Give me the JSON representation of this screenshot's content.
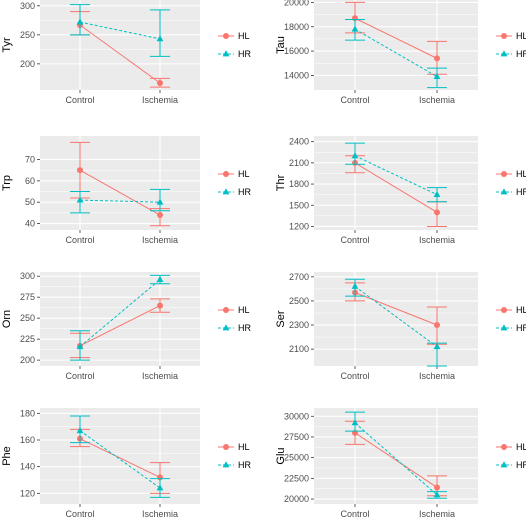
{
  "colors": {
    "HL": "#f8766d",
    "HR": "#00bfc4",
    "panel_bg": "#ebebeb",
    "grid": "#ffffff"
  },
  "chart_data": [
    {
      "type": "line",
      "ylabel": "Tyr",
      "categories": [
        "Control",
        "Ischemia"
      ],
      "ylim": [
        155,
        310
      ],
      "yticks": [
        200,
        250,
        300
      ],
      "legend": [
        "HL",
        "HR"
      ],
      "series": [
        {
          "name": "HL",
          "values": [
            267,
            167
          ],
          "lower": [
            250,
            160
          ],
          "upper": [
            290,
            175
          ]
        },
        {
          "name": "HR",
          "values": [
            272,
            243
          ],
          "lower": [
            250,
            213
          ],
          "upper": [
            302,
            293
          ]
        }
      ]
    },
    {
      "type": "line",
      "ylabel": "Tau",
      "categories": [
        "Control",
        "Ischemia"
      ],
      "ylim": [
        12800,
        20200
      ],
      "yticks": [
        14000,
        16000,
        18000,
        20000
      ],
      "legend": [
        "HL",
        "HR"
      ],
      "series": [
        {
          "name": "HL",
          "values": [
            18700,
            15400
          ],
          "lower": [
            17500,
            14100
          ],
          "upper": [
            20000,
            16800
          ]
        },
        {
          "name": "HR",
          "values": [
            17800,
            13900
          ],
          "lower": [
            16900,
            13000
          ],
          "upper": [
            18600,
            14600
          ]
        }
      ]
    },
    {
      "type": "line",
      "ylabel": "Trp",
      "categories": [
        "Control",
        "Ischemia"
      ],
      "ylim": [
        37,
        81
      ],
      "yticks": [
        40,
        50,
        60,
        70
      ],
      "legend": [
        "HL",
        "HR"
      ],
      "series": [
        {
          "name": "HL",
          "values": [
            65,
            44
          ],
          "lower": [
            52,
            39
          ],
          "upper": [
            78,
            47
          ]
        },
        {
          "name": "HR",
          "values": [
            51,
            50
          ],
          "lower": [
            45,
            46
          ],
          "upper": [
            55,
            56
          ]
        }
      ]
    },
    {
      "type": "line",
      "ylabel": "Thr",
      "categories": [
        "Control",
        "Ischemia"
      ],
      "ylim": [
        1150,
        2480
      ],
      "yticks": [
        1200,
        1500,
        1800,
        2100,
        2400
      ],
      "legend": [
        "HL",
        "HR"
      ],
      "series": [
        {
          "name": "HL",
          "values": [
            2100,
            1400
          ],
          "lower": [
            1960,
            1200
          ],
          "upper": [
            2200,
            1550
          ]
        },
        {
          "name": "HR",
          "values": [
            2200,
            1650
          ],
          "lower": [
            2080,
            1550
          ],
          "upper": [
            2380,
            1750
          ]
        }
      ]
    },
    {
      "type": "line",
      "ylabel": "Orn",
      "categories": [
        "Control",
        "Ischemia"
      ],
      "ylim": [
        193,
        305
      ],
      "yticks": [
        200,
        225,
        250,
        275,
        300
      ],
      "legend": [
        "HL",
        "HR"
      ],
      "series": [
        {
          "name": "HL",
          "values": [
            217,
            265
          ],
          "lower": [
            203,
            257
          ],
          "upper": [
            232,
            273
          ]
        },
        {
          "name": "HR",
          "values": [
            216,
            296
          ],
          "lower": [
            200,
            291
          ],
          "upper": [
            235,
            301
          ]
        }
      ]
    },
    {
      "type": "line",
      "ylabel": "Ser",
      "categories": [
        "Control",
        "Ischemia"
      ],
      "ylim": [
        1960,
        2740
      ],
      "yticks": [
        2100,
        2300,
        2500,
        2700
      ],
      "legend": [
        "HL",
        "HR"
      ],
      "series": [
        {
          "name": "HL",
          "values": [
            2570,
            2300
          ],
          "lower": [
            2500,
            2140
          ],
          "upper": [
            2650,
            2450
          ]
        },
        {
          "name": "HR",
          "values": [
            2620,
            2120
          ],
          "lower": [
            2540,
            1960
          ],
          "upper": [
            2680,
            2150
          ]
        }
      ]
    },
    {
      "type": "line",
      "ylabel": "Phe",
      "categories": [
        "Control",
        "Ischemia"
      ],
      "ylim": [
        112,
        184
      ],
      "yticks": [
        120,
        140,
        160,
        180
      ],
      "legend": [
        "HL",
        "HR"
      ],
      "series": [
        {
          "name": "HL",
          "values": [
            161,
            132
          ],
          "lower": [
            155,
            120
          ],
          "upper": [
            168,
            143
          ]
        },
        {
          "name": "HR",
          "values": [
            167,
            124
          ],
          "lower": [
            158,
            117
          ],
          "upper": [
            178,
            131
          ]
        }
      ]
    },
    {
      "type": "line",
      "ylabel": "Glu",
      "categories": [
        "Control",
        "Ischemia"
      ],
      "ylim": [
        19400,
        31000
      ],
      "yticks": [
        20000,
        22500,
        25000,
        27500,
        30000
      ],
      "legend": [
        "HL",
        "HR"
      ],
      "series": [
        {
          "name": "HL",
          "values": [
            28000,
            21400
          ],
          "lower": [
            26600,
            20400
          ],
          "upper": [
            29400,
            22800
          ]
        },
        {
          "name": "HR",
          "values": [
            29200,
            20500
          ],
          "lower": [
            28200,
            20100
          ],
          "upper": [
            30500,
            20900
          ]
        }
      ]
    }
  ]
}
